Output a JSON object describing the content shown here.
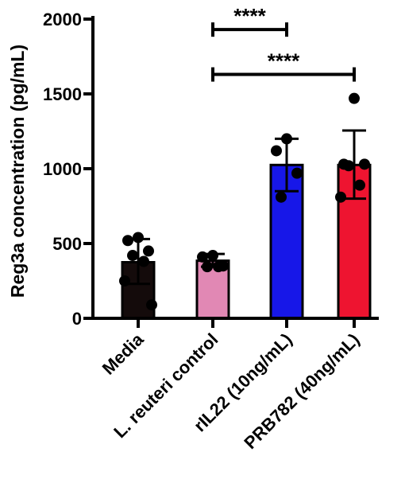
{
  "chart_data": {
    "type": "bar",
    "ylabel": "Reg3a concentration (pg/mL)",
    "xlabel": "",
    "ylim": [
      0,
      2000
    ],
    "yticks": [
      0,
      500,
      1000,
      1500,
      2000
    ],
    "categories": [
      "Media",
      "L. reuteri control",
      "rIL22 (10ng/mL)",
      "PRB782 (40ng/mL)"
    ],
    "bar_colors": [
      "#140b0b",
      "#e188b4",
      "#1717e8",
      "#ee1430"
    ],
    "values": [
      375,
      385,
      1025,
      1025
    ],
    "error_upper": [
      530,
      430,
      1200,
      1255
    ],
    "error_lower": [
      230,
      345,
      850,
      800
    ],
    "points": [
      [
        540,
        520,
        450,
        420,
        380,
        250,
        90
      ],
      [
        420,
        410,
        350,
        345,
        345
      ],
      [
        1200,
        1120,
        970,
        810
      ],
      [
        1470,
        1030,
        1030,
        1020,
        890,
        810
      ]
    ],
    "significance": [
      {
        "from": 1,
        "to": 2,
        "y": 1930,
        "label": "****"
      },
      {
        "from": 1,
        "to": 3,
        "y": 1630,
        "label": "****"
      }
    ],
    "grid": false,
    "legend": "none"
  }
}
